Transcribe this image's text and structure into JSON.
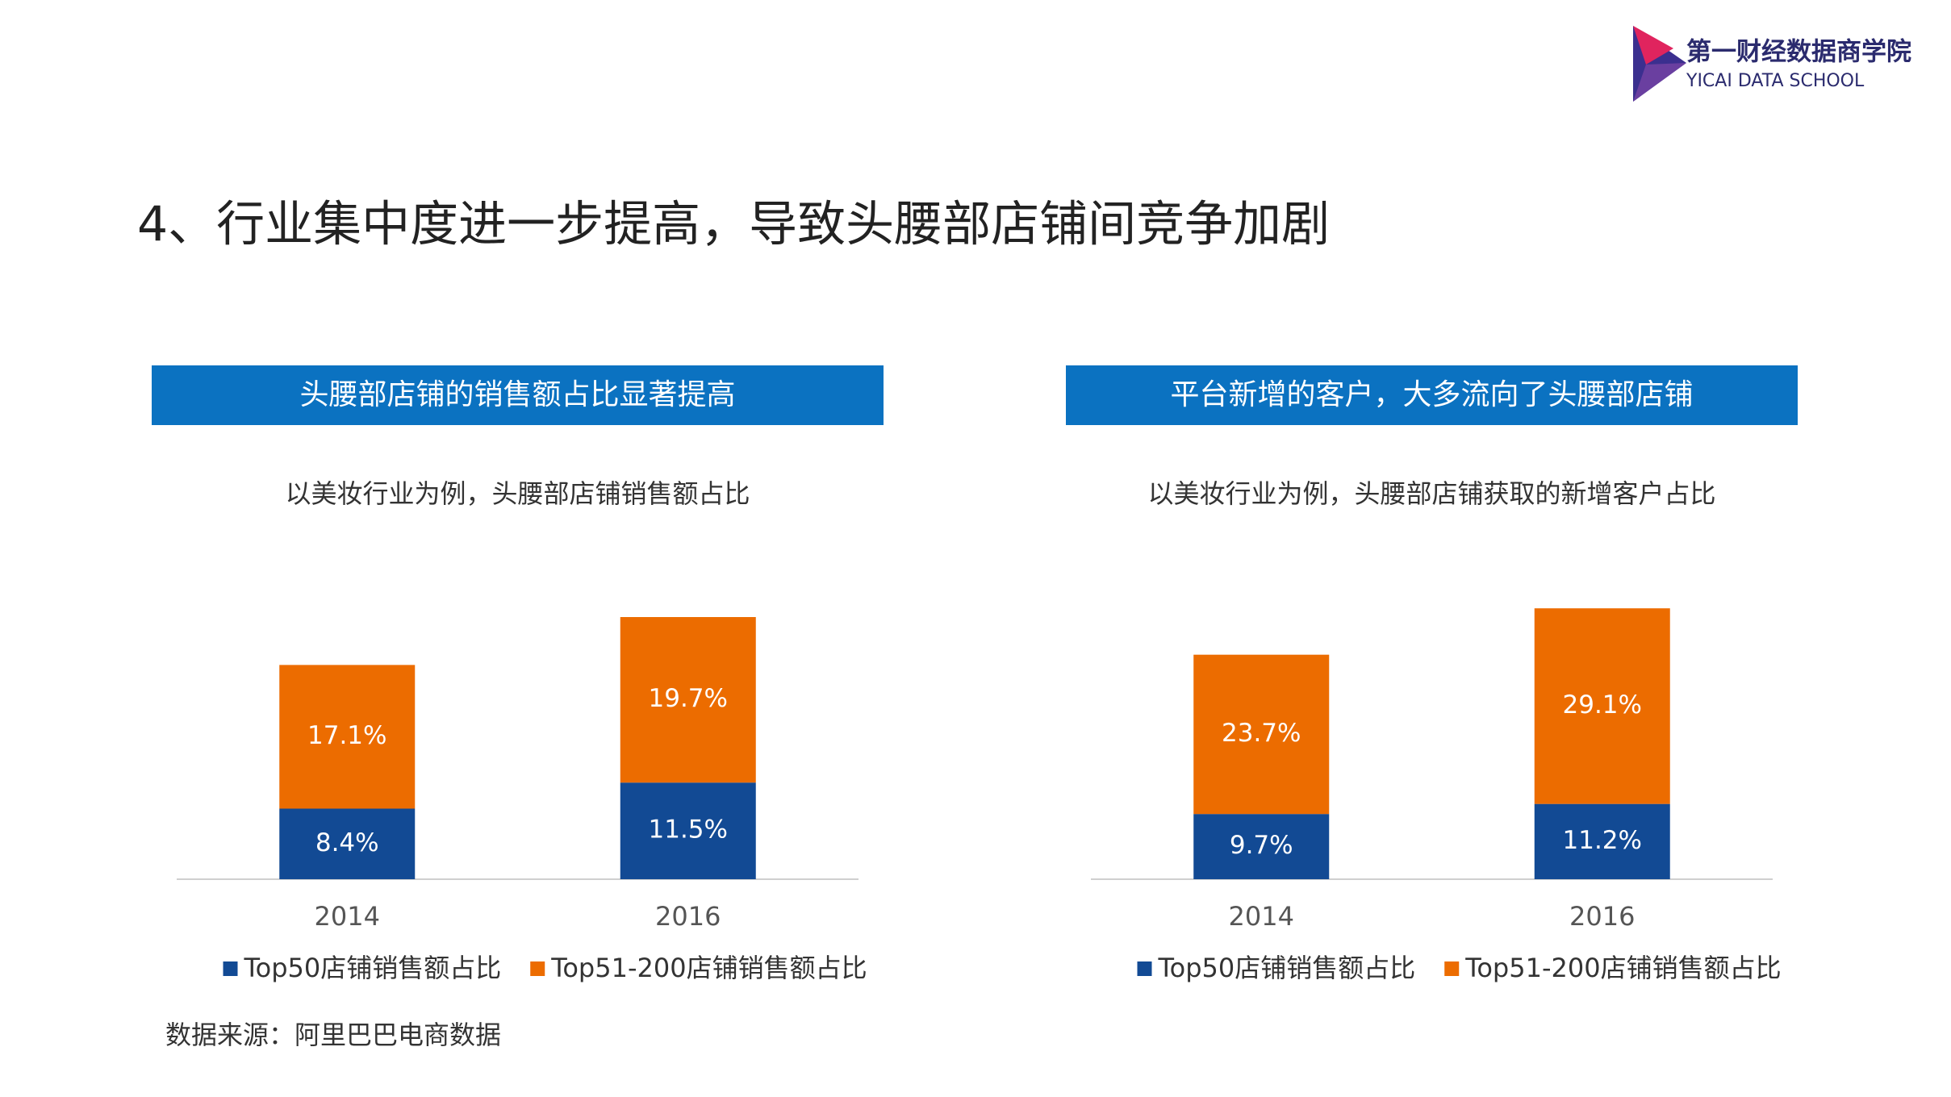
{
  "header": {
    "title": "4、行业集中度进一步提高，导致头腰部店铺间竞争加剧",
    "logo_cn": "第一财经数据商学院",
    "logo_en": "YICAI DATA SCHOOL"
  },
  "source": "数据来源：阿里巴巴电商数据",
  "chart_data": [
    {
      "type": "stacked-bar",
      "title": "头腰部店铺的销售额占比显著提高",
      "subtitle": "以美妆行业为例，头腰部店铺销售额占比",
      "categories": [
        "2014",
        "2016"
      ],
      "ylim": [
        0,
        36
      ],
      "series": [
        {
          "name": "Top50店铺销售额占比",
          "color": "#124a94",
          "values": [
            8.4,
            11.5
          ],
          "value_labels": [
            "8.4%",
            "11.5%"
          ]
        },
        {
          "name": "Top51-200店铺销售额占比",
          "color": "#ec6c00",
          "values": [
            17.1,
            19.7
          ],
          "value_labels": [
            "17.1%",
            "19.7%"
          ]
        }
      ]
    },
    {
      "type": "stacked-bar",
      "title": "平台新增的客户，大多流向了头腰部店铺",
      "subtitle": "以美妆行业为例，头腰部店铺获取的新增客户占比",
      "categories": [
        "2014",
        "2016"
      ],
      "ylim": [
        0,
        45
      ],
      "series": [
        {
          "name": "Top50店铺销售额占比",
          "color": "#124a94",
          "values": [
            9.7,
            11.2
          ],
          "value_labels": [
            "9.7%",
            "11.2%"
          ]
        },
        {
          "name": "Top51-200店铺销售额占比",
          "color": "#ec6c00",
          "values": [
            23.7,
            29.1
          ],
          "value_labels": [
            "23.7%",
            "29.1%"
          ]
        }
      ]
    }
  ]
}
